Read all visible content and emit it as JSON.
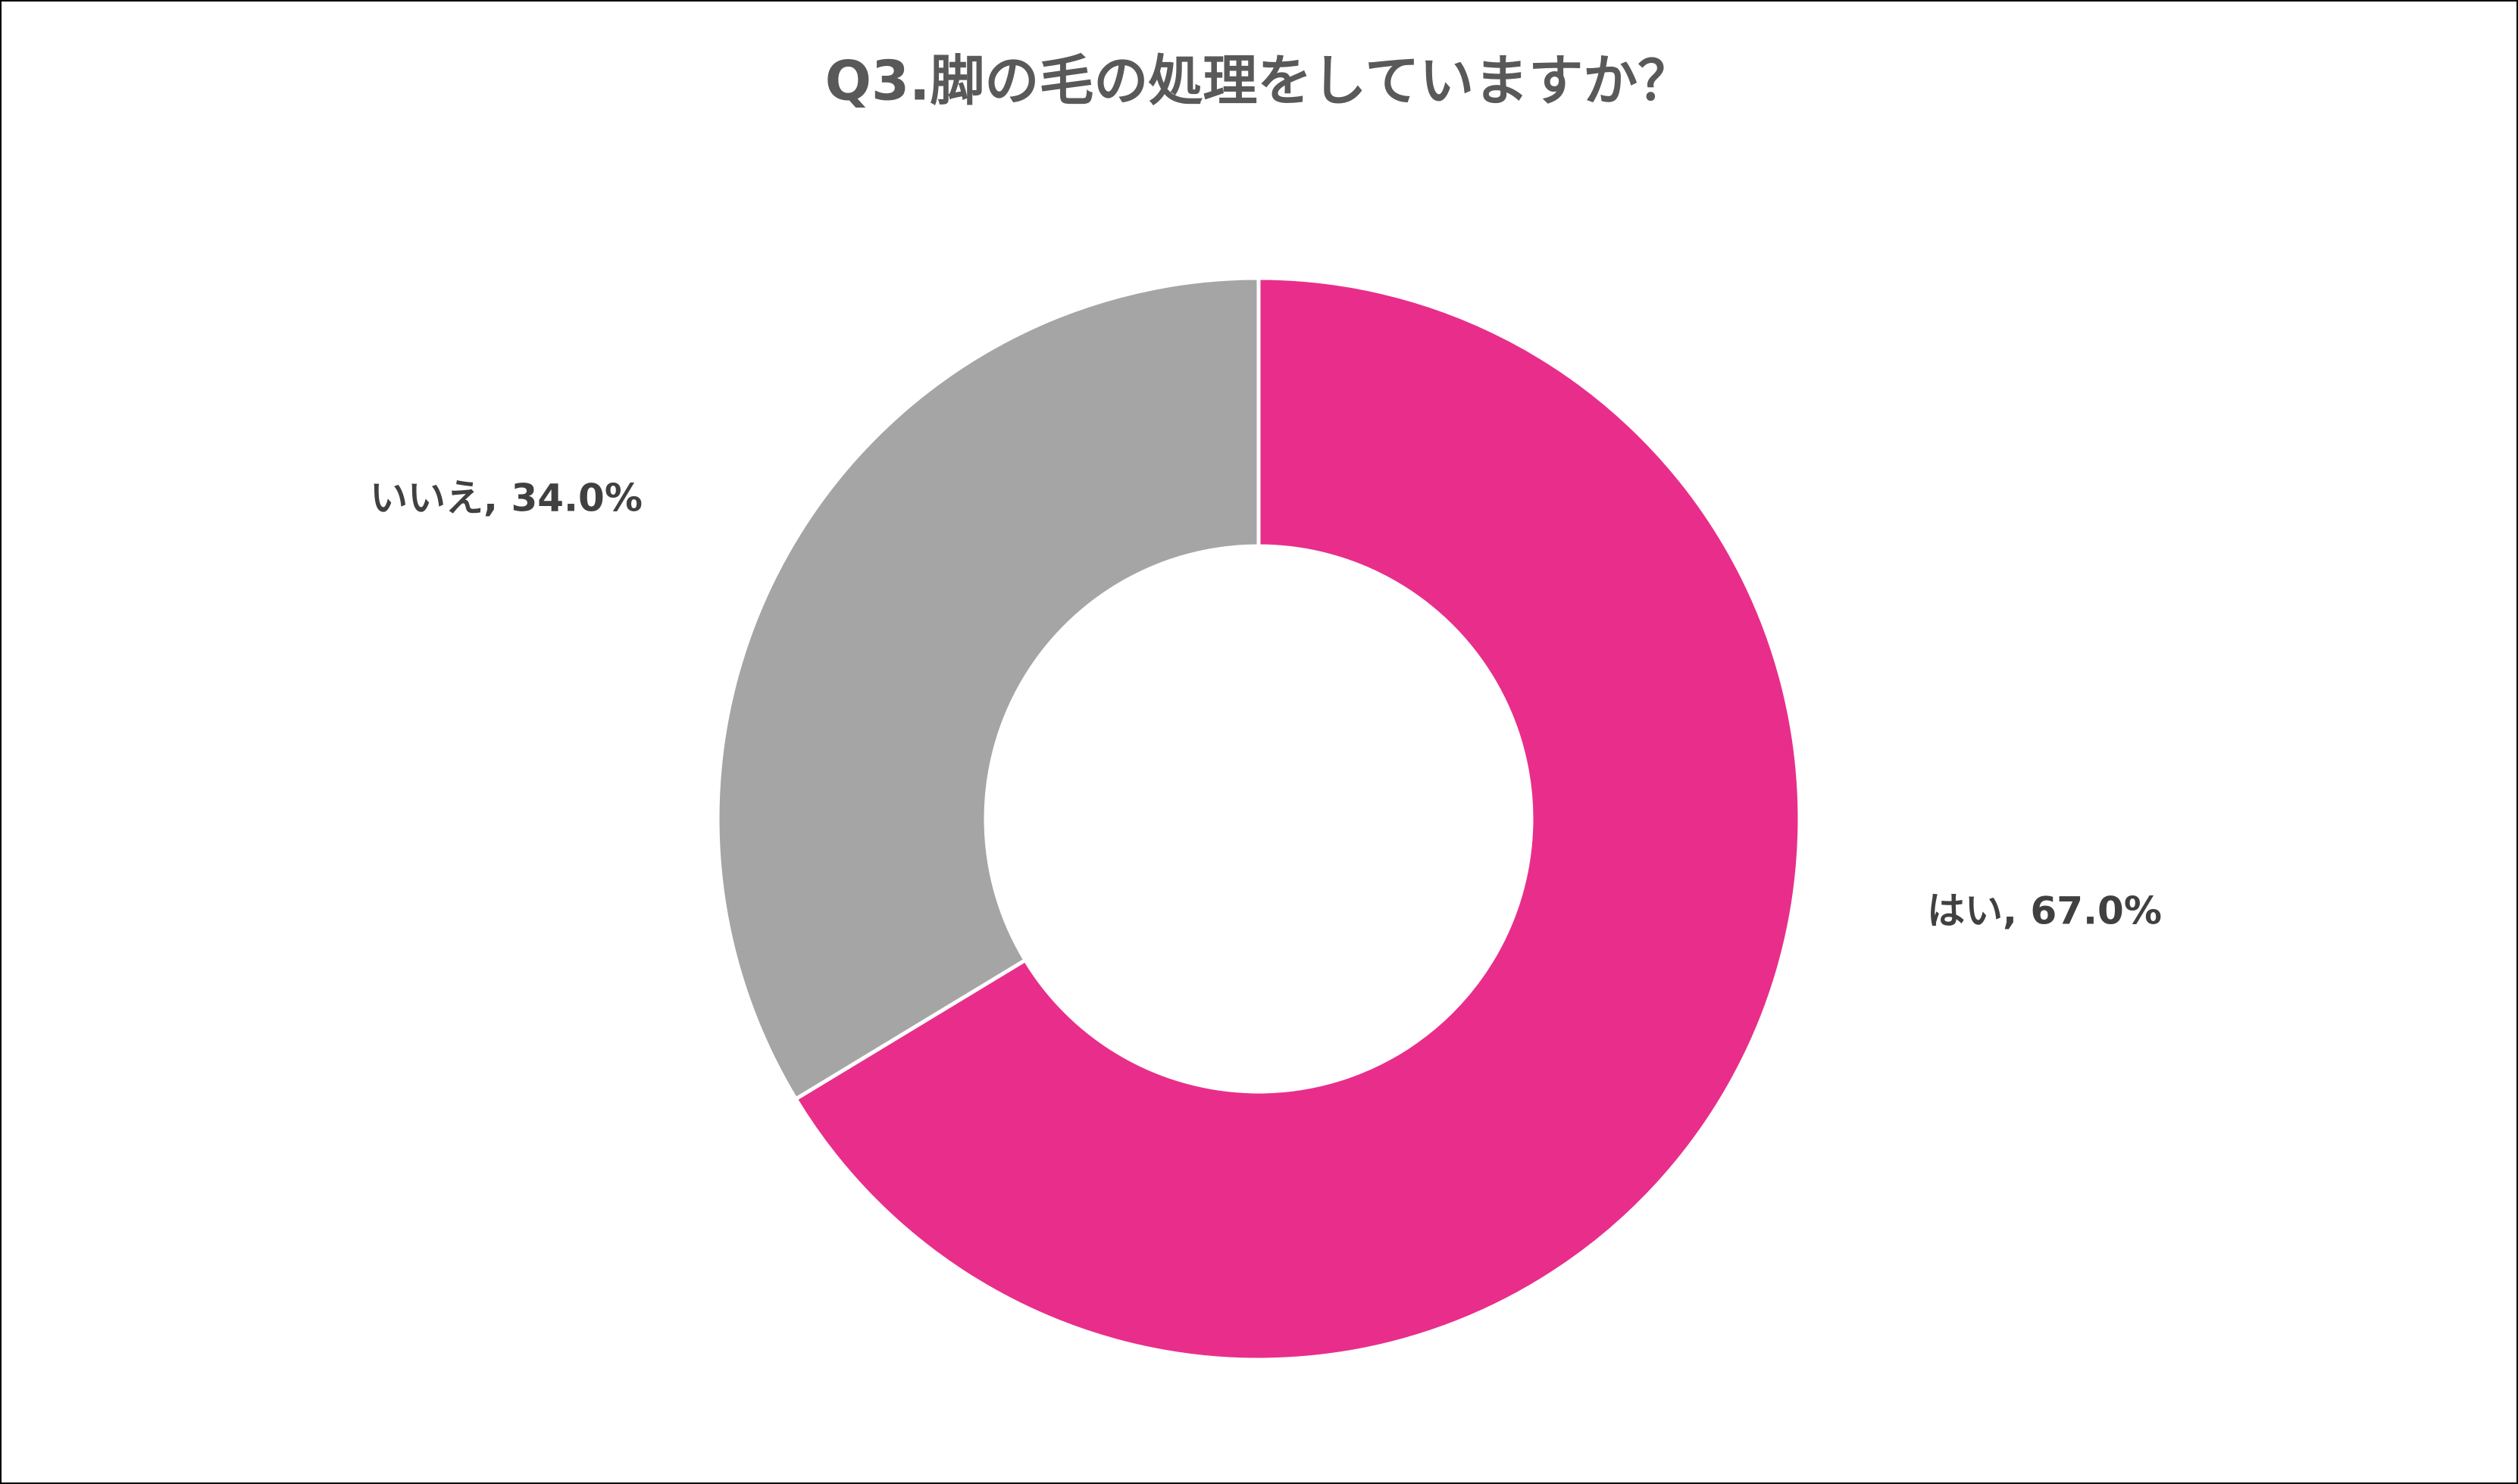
{
  "chart_data": {
    "type": "donut",
    "title": "Q3.脚の毛の処理をしていますか？",
    "values": [
      67.0,
      34.0
    ],
    "value_labels": [
      "はい, 67.0%",
      "いいえ, 34.0%"
    ],
    "colors": [
      "#E82E8A",
      "#A5A5A5"
    ]
  }
}
